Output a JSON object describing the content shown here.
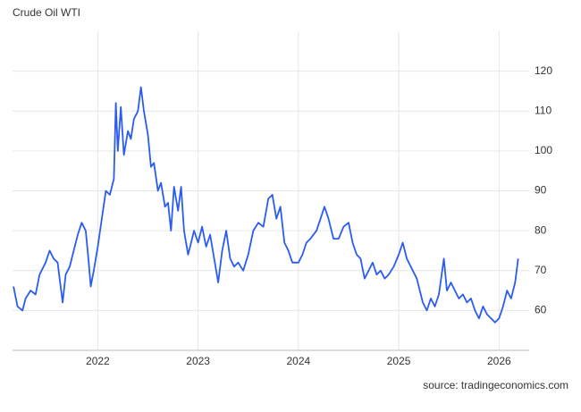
{
  "chart_data": {
    "type": "line",
    "title": "Crude Oil WTI",
    "source": "source: tradingeconomics.com",
    "x": [
      2021.16,
      2021.2,
      2021.25,
      2021.28,
      2021.33,
      2021.38,
      2021.42,
      2021.48,
      2021.52,
      2021.56,
      2021.6,
      2021.62,
      2021.65,
      2021.68,
      2021.72,
      2021.76,
      2021.8,
      2021.84,
      2021.88,
      2021.91,
      2021.93,
      2021.96,
      2022.0,
      2022.04,
      2022.08,
      2022.12,
      2022.16,
      2022.18,
      2022.2,
      2022.23,
      2022.26,
      2022.3,
      2022.33,
      2022.36,
      2022.4,
      2022.43,
      2022.46,
      2022.5,
      2022.53,
      2022.56,
      2022.6,
      2022.63,
      2022.67,
      2022.7,
      2022.73,
      2022.76,
      2022.8,
      2022.83,
      2022.86,
      2022.9,
      2022.93,
      2022.96,
      2023.0,
      2023.04,
      2023.08,
      2023.12,
      2023.16,
      2023.2,
      2023.24,
      2023.28,
      2023.32,
      2023.36,
      2023.4,
      2023.45,
      2023.5,
      2023.55,
      2023.6,
      2023.65,
      2023.7,
      2023.74,
      2023.78,
      2023.82,
      2023.86,
      2023.9,
      2023.94,
      2024.0,
      2024.04,
      2024.08,
      2024.12,
      2024.18,
      2024.22,
      2024.26,
      2024.3,
      2024.35,
      2024.4,
      2024.45,
      2024.5,
      2024.54,
      2024.58,
      2024.62,
      2024.66,
      2024.7,
      2024.74,
      2024.78,
      2024.82,
      2024.86,
      2024.9,
      2024.95,
      2025.0,
      2025.04,
      2025.08,
      2025.12,
      2025.18,
      2025.24,
      2025.28,
      2025.32,
      2025.36,
      2025.4,
      2025.45,
      2025.48,
      2025.52,
      2025.56,
      2025.6,
      2025.64,
      2025.68,
      2025.72,
      2025.76,
      2025.8,
      2025.84,
      2025.88,
      2025.92,
      2025.96,
      2026.0,
      2026.04,
      2026.08,
      2026.12,
      2026.16,
      2026.19
    ],
    "values": [
      66,
      61,
      60,
      63,
      65,
      64,
      69,
      72,
      75,
      73,
      72,
      68,
      62,
      69,
      71,
      75,
      79,
      82,
      80,
      72,
      66,
      70,
      76,
      83,
      90,
      89,
      93,
      112,
      100,
      111,
      99,
      105,
      103,
      108,
      110,
      116,
      110,
      104,
      96,
      97,
      90,
      92,
      86,
      87,
      80,
      91,
      85,
      91,
      80,
      74,
      77,
      80,
      77,
      81,
      76,
      79,
      73,
      67,
      75,
      80,
      73,
      71,
      72,
      70,
      74,
      80,
      82,
      81,
      88,
      89,
      83,
      86,
      77,
      75,
      72,
      72,
      74,
      77,
      78,
      80,
      83,
      86,
      83,
      78,
      78,
      81,
      82,
      77,
      74,
      73,
      68,
      70,
      72,
      69,
      70,
      68,
      69,
      71,
      74,
      77,
      73,
      71,
      68,
      62,
      60,
      63,
      61,
      64,
      73,
      65,
      67,
      65,
      63,
      64,
      62,
      63,
      60,
      58,
      61,
      59,
      58,
      57,
      58,
      61,
      65,
      63,
      67,
      73
    ],
    "color": "#2a5cf2",
    "xlim": [
      2021.15,
      2026.3
    ],
    "xticks": [
      2022,
      2023,
      2024,
      2025,
      2026
    ],
    "ylim": [
      50,
      130
    ],
    "yticks": [
      60,
      70,
      80,
      90,
      100,
      110,
      120
    ],
    "grid": true
  }
}
